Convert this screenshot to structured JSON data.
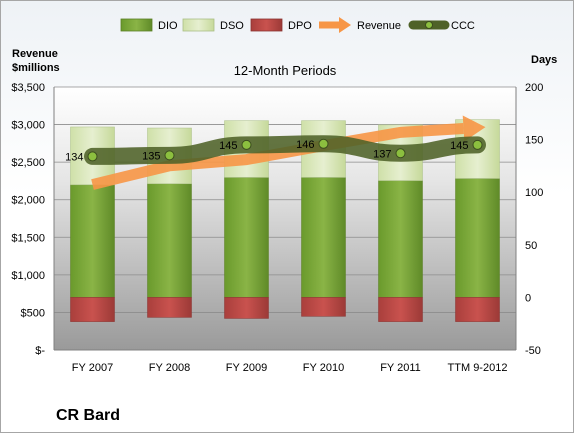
{
  "chart_data": {
    "type": "bar",
    "title": "12-Month Periods",
    "company": "CR Bard",
    "left_axis": {
      "title_line1": "Revenue",
      "title_line2": "$millions",
      "ylim": [
        0,
        3500
      ],
      "ticks": [
        0,
        500,
        1000,
        1500,
        2000,
        2500,
        3000,
        3500
      ],
      "tick_labels": [
        "$-",
        "$500",
        "$1,000",
        "$1,500",
        "$2,000",
        "$2,500",
        "$3,000",
        "$3,500"
      ]
    },
    "right_axis": {
      "title": "Days",
      "ylim": [
        -50,
        200
      ],
      "ticks": [
        -50,
        0,
        50,
        100,
        150,
        200
      ],
      "tick_labels": [
        "-50",
        "0",
        "50",
        "100",
        "150",
        "200"
      ]
    },
    "categories": [
      "FY 2007",
      "FY 2008",
      "FY 2009",
      "FY 2010",
      "FY 2011",
      "TTM 9-2012"
    ],
    "series": [
      {
        "name": "DIO",
        "kind": "stacked-bar",
        "axis": "right",
        "color": "#77a033",
        "values": [
          107,
          108,
          114,
          114,
          111,
          113
        ]
      },
      {
        "name": "DSO",
        "kind": "stacked-bar",
        "axis": "right",
        "color": "#d7e4bd",
        "values": [
          55,
          53,
          54,
          54,
          53,
          56
        ]
      },
      {
        "name": "DPO",
        "kind": "negative-bar",
        "axis": "right",
        "color": "#c0504d",
        "values": [
          -23,
          -19,
          -20,
          -18,
          -23,
          -23
        ]
      },
      {
        "name": "Revenue",
        "kind": "arrow-line",
        "axis": "left",
        "color": "#f79646",
        "values": [
          2202,
          2452,
          2534,
          2720,
          2896,
          2960
        ]
      },
      {
        "name": "CCC",
        "kind": "line",
        "axis": "right",
        "color": "#4f6228",
        "values": [
          134,
          135,
          145,
          146,
          137,
          145
        ],
        "labels": [
          "134",
          "135",
          "145",
          "146",
          "137",
          "145"
        ]
      }
    ],
    "grid": true,
    "legend_position": "top"
  }
}
